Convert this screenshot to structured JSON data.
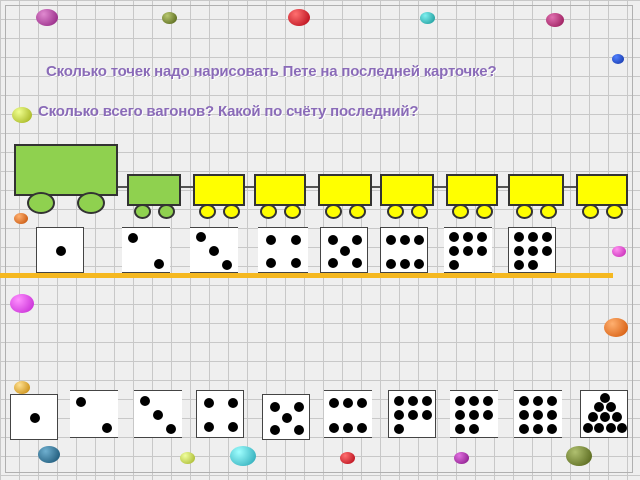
{
  "questions": {
    "q1": "Сколько  точек надо нарисовать Пете на последней карточке?",
    "q2": "Сколько  всего вагонов? Какой по счёту последний?"
  },
  "colors": {
    "title": "#8a6bb8",
    "locomotive": "#8fd14f",
    "wagon": "#ffff00",
    "divider": "#f5b820"
  },
  "train": {
    "cars": [
      {
        "kind": "locomotive",
        "color": "#8fd14f"
      },
      {
        "kind": "tender",
        "color": "#8fd14f"
      },
      {
        "kind": "wagon",
        "color": "#ffff00"
      },
      {
        "kind": "wagon",
        "color": "#ffff00"
      },
      {
        "kind": "wagon",
        "color": "#ffff00"
      },
      {
        "kind": "wagon",
        "color": "#ffff00"
      },
      {
        "kind": "wagon",
        "color": "#ffff00"
      },
      {
        "kind": "wagon",
        "color": "#ffff00"
      },
      {
        "kind": "wagon",
        "color": "#ffff00"
      }
    ]
  },
  "top_cards": [
    1,
    2,
    3,
    4,
    5,
    6,
    7,
    8
  ],
  "bottom_cards": [
    1,
    2,
    3,
    4,
    5,
    6,
    7,
    8,
    9,
    10
  ]
}
